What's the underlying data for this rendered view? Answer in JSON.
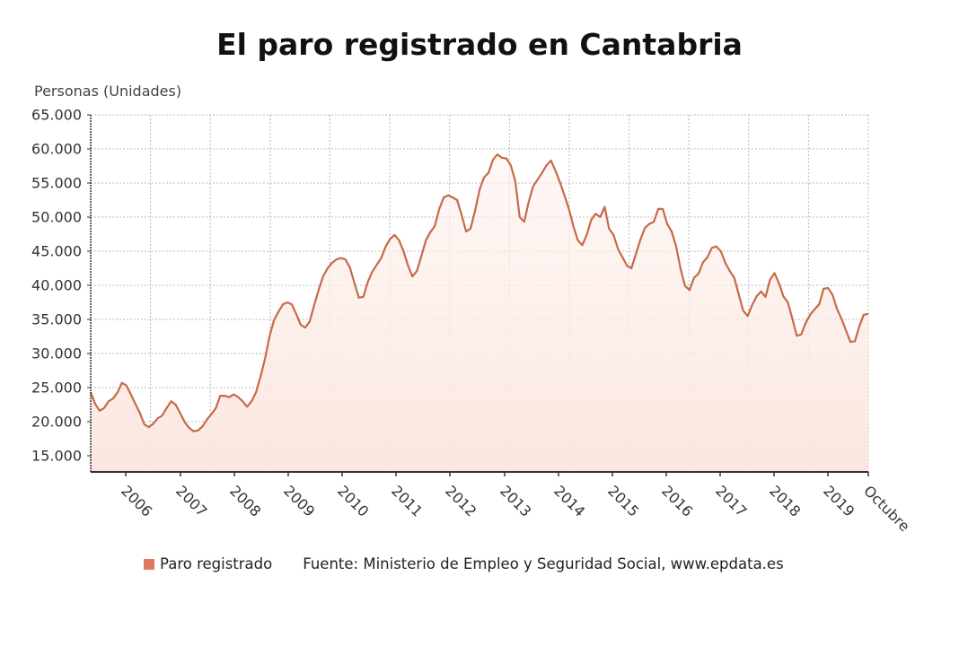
{
  "chart_data": {
    "type": "area",
    "title": "El paro registrado en Cantabria",
    "ylabel": "Personas (Unidades)",
    "xlabel": "",
    "ylim": [
      12600,
      65000
    ],
    "yticks": [
      15000,
      20000,
      25000,
      30000,
      35000,
      40000,
      45000,
      50000,
      55000,
      60000,
      65000
    ],
    "ytick_labels": [
      "15.000",
      "20.000",
      "25.000",
      "30.000",
      "35.000",
      "40.000",
      "45.000",
      "50.000",
      "55.000",
      "60.000",
      "65.000"
    ],
    "xtick_labels": [
      "2006",
      "2007",
      "2008",
      "2009",
      "2010",
      "2011",
      "2012",
      "2013",
      "2014",
      "2015",
      "2016",
      "2017",
      "2018",
      "2019",
      "Octubre"
    ],
    "grid": true,
    "legend": "bottom",
    "series": [
      {
        "name": "Paro registrado",
        "color": "#c8694a",
        "fill": "#fdeee9",
        "values": [
          24300,
          22600,
          21600,
          22000,
          23000,
          23400,
          24300,
          25700,
          25300,
          24000,
          22600,
          21300,
          19600,
          19200,
          19700,
          20500,
          20900,
          22000,
          23000,
          22500,
          21300,
          20000,
          19100,
          18600,
          18700,
          19300,
          20300,
          21100,
          22000,
          23800,
          23800,
          23600,
          24000,
          23600,
          23000,
          22200,
          23000,
          24300,
          26600,
          29200,
          32500,
          34900,
          36100,
          37200,
          37500,
          37200,
          35800,
          34200,
          33800,
          34700,
          37100,
          39300,
          41300,
          42500,
          43300,
          43800,
          44000,
          43800,
          42600,
          40400,
          38200,
          38300,
          40500,
          42000,
          43000,
          44000,
          45700,
          46800,
          47400,
          46600,
          45000,
          42900,
          41300,
          42100,
          44300,
          46600,
          47800,
          48700,
          51200,
          52900,
          53200,
          52900,
          52500,
          50300,
          47900,
          48300,
          50900,
          54000,
          55800,
          56500,
          58400,
          59200,
          58700,
          58600,
          57600,
          55300,
          50000,
          49300,
          52200,
          54500,
          55500,
          56500,
          57600,
          58300,
          56800,
          55100,
          53200,
          51200,
          48700,
          46600,
          45900,
          47400,
          49600,
          50500,
          50000,
          51500,
          48300,
          47400,
          45300,
          44100,
          42900,
          42500,
          44600,
          46700,
          48400,
          49000,
          49300,
          51200,
          51200,
          49000,
          47900,
          45700,
          42400,
          39900,
          39300,
          41100,
          41700,
          43400,
          44100,
          45500,
          45700,
          45000,
          43300,
          42100,
          41100,
          38700,
          36300,
          35500,
          37100,
          38400,
          39100,
          38300,
          40800,
          41800,
          40300,
          38400,
          37500,
          35100,
          32600,
          32800,
          34500,
          35700,
          36500,
          37200,
          39500,
          39600,
          38600,
          36500,
          35100,
          33400,
          31700,
          31800,
          34000,
          35700,
          35800
        ]
      }
    ],
    "source": "Fuente: Ministerio de Empleo y Seguridad Social, www.epdata.es"
  }
}
